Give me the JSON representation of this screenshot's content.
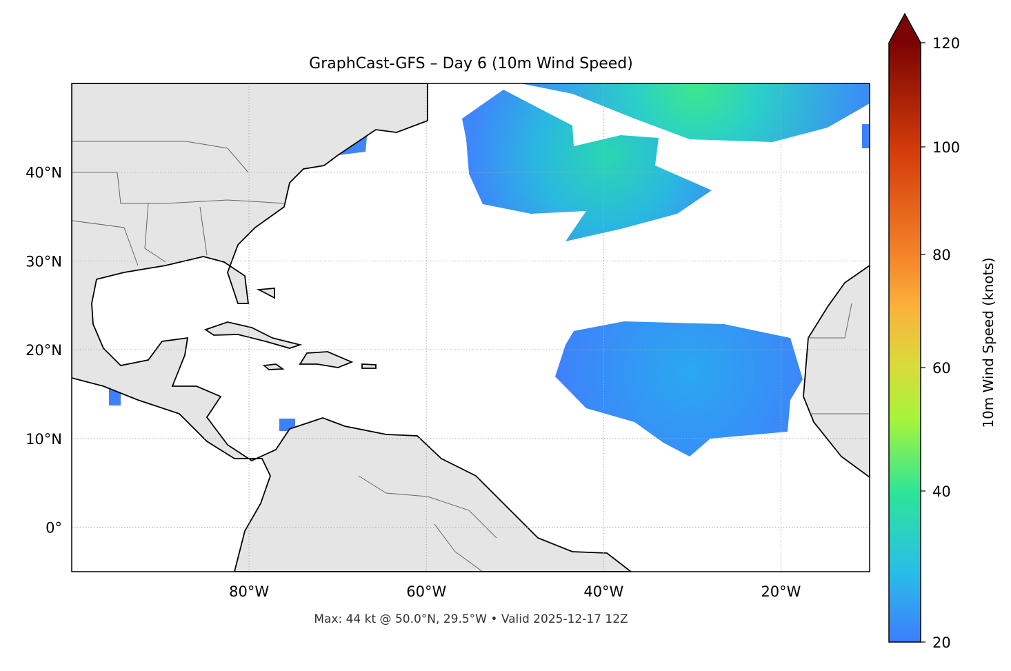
{
  "title": "GraphCast-GFS – Day 6 (10m Wind Speed)",
  "footer": "Max: 44 kt @ 50.0°N, 29.5°W • Valid 2025-12-17 12Z",
  "map": {
    "extent": {
      "lon": [
        -100,
        -10
      ],
      "lat": [
        -5,
        50
      ]
    },
    "lon_ticks": [
      {
        "value": -80,
        "label": "80°W"
      },
      {
        "value": -60,
        "label": "60°W"
      },
      {
        "value": -40,
        "label": "40°W"
      },
      {
        "value": -20,
        "label": "20°W"
      }
    ],
    "lat_ticks": [
      {
        "value": 40,
        "label": "40°N"
      },
      {
        "value": 30,
        "label": "30°N"
      },
      {
        "value": 20,
        "label": "20°N"
      },
      {
        "value": 10,
        "label": "10°N"
      },
      {
        "value": 0,
        "label": "0°"
      }
    ],
    "land_color": "#e5e5e5",
    "gridlines": "dotted"
  },
  "colorbar": {
    "label": "10m Wind Speed (knots)",
    "range": [
      20,
      120
    ],
    "extend": "max",
    "ticks": [
      {
        "value": 20,
        "label": "20"
      },
      {
        "value": 40,
        "label": "40"
      },
      {
        "value": 60,
        "label": "60"
      },
      {
        "value": 80,
        "label": "80"
      },
      {
        "value": 100,
        "label": "100"
      },
      {
        "value": 120,
        "label": "120"
      }
    ],
    "colormap": [
      "#3f7dfd",
      "#28bfe6",
      "#2de598",
      "#a5f43a",
      "#d8dc3a",
      "#fbb13b",
      "#f5862a",
      "#d43c0a",
      "#7a0403"
    ]
  }
}
